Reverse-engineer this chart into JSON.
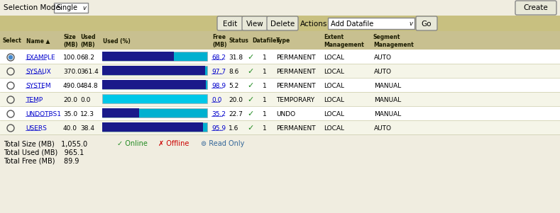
{
  "bg_color": "#f0ede0",
  "toolbar_color": "#c8c080",
  "col_header_bg": "#c8c090",
  "create_btn": "Create",
  "actions_value": "Add Datafile",
  "go_btn": "Go",
  "rows": [
    {
      "name": "EXAMPLE",
      "size": "100.0",
      "used": "68.2",
      "used_pct": 68.2,
      "free": "31.8",
      "datafiles": "1",
      "type": "PERMANENT",
      "extent": "LOCAL",
      "segment": "AUTO",
      "selected": true,
      "bar_dark": "#1a1a8a",
      "bar_light": "#00b0d0"
    },
    {
      "name": "SYSAUX",
      "size": "370.0",
      "used": "361.4",
      "used_pct": 97.7,
      "free": "8.6",
      "datafiles": "1",
      "type": "PERMANENT",
      "extent": "LOCAL",
      "segment": "AUTO",
      "selected": false,
      "bar_dark": "#1a1a8a",
      "bar_light": "#00b0d0"
    },
    {
      "name": "SYSTEM",
      "size": "490.0",
      "used": "484.8",
      "used_pct": 98.9,
      "free": "5.2",
      "datafiles": "1",
      "type": "PERMANENT",
      "extent": "LOCAL",
      "segment": "MANUAL",
      "selected": false,
      "bar_dark": "#1a1a8a",
      "bar_light": "#00b0d0"
    },
    {
      "name": "TEMP",
      "size": "20.0",
      "used": "0.0",
      "used_pct": 0.0,
      "free": "20.0",
      "datafiles": "1",
      "type": "TEMPORARY",
      "extent": "LOCAL",
      "segment": "MANUAL",
      "selected": false,
      "bar_dark": "#00b0d0",
      "bar_light": "#00c8e8"
    },
    {
      "name": "UNDOTBS1",
      "size": "35.0",
      "used": "12.3",
      "used_pct": 35.2,
      "free": "22.7",
      "datafiles": "1",
      "type": "UNDO",
      "extent": "LOCAL",
      "segment": "MANUAL",
      "selected": false,
      "bar_dark": "#1a1a8a",
      "bar_light": "#00b0d0"
    },
    {
      "name": "USERS",
      "size": "40.0",
      "used": "38.4",
      "used_pct": 95.9,
      "free": "1.6",
      "datafiles": "1",
      "type": "PERMANENT",
      "extent": "LOCAL",
      "segment": "AUTO",
      "selected": false,
      "bar_dark": "#1a1a8a",
      "bar_light": "#00b0d0"
    }
  ],
  "totals": {
    "size": "1,055.0",
    "used": "965.1",
    "free": "89.9"
  }
}
